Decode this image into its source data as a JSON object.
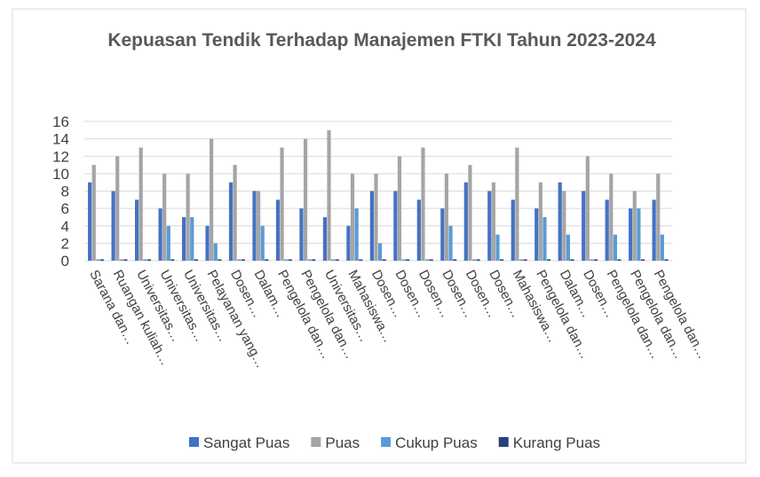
{
  "chart_data": {
    "type": "bar",
    "title": "Kepuasan Tendik Terhadap Manajemen FTKI Tahun 2023-2024",
    "categories": [
      "Sarana dan…",
      "Ruangan kuliah…",
      "Universitas…",
      "Universitas…",
      "Universitas…",
      "Pelayanan yang…",
      "Dosen…",
      "Dalam…",
      "Pengelola dan…",
      "Pengelola dan…",
      "Universitas…",
      "Mahasiswa…",
      "Dosen…",
      "Dosen…",
      "Dosen…",
      "Dosen…",
      "Dosen…",
      "Dosen…",
      "Mahasiswa…",
      "Pengelola dan…",
      "Dalam…",
      "Dosen…",
      "Pengelola dan…",
      "Pengelola dan…",
      "Pengelola dan…"
    ],
    "series": [
      {
        "name": "Sangat Puas",
        "color": "#4472c4",
        "values": [
          9,
          8,
          7,
          6,
          5,
          4,
          9,
          8,
          7,
          6,
          5,
          4,
          8,
          8,
          7,
          6,
          9,
          8,
          7,
          6,
          9,
          8,
          7,
          6,
          7
        ]
      },
      {
        "name": "Puas",
        "color": "#a5a5a5",
        "values": [
          11,
          12,
          13,
          10,
          10,
          14,
          11,
          8,
          13,
          14,
          15,
          10,
          10,
          12,
          13,
          10,
          11,
          9,
          13,
          9,
          8,
          12,
          10,
          8,
          10
        ]
      },
      {
        "name": "Cukup Puas",
        "color": "#5b9bd5",
        "values": [
          0,
          0,
          0,
          4,
          5,
          2,
          0,
          4,
          0,
          0,
          0,
          6,
          2,
          0,
          0,
          4,
          0,
          3,
          0,
          5,
          3,
          0,
          3,
          6,
          3
        ]
      },
      {
        "name": "Kurang Puas",
        "color": "#264478",
        "values": [
          0,
          0,
          0,
          0,
          0,
          0,
          0,
          0,
          0,
          0,
          0,
          0,
          0,
          0,
          0,
          0,
          0,
          0,
          0,
          0,
          0,
          0,
          0,
          0,
          0
        ]
      }
    ],
    "ylim": [
      0,
      16
    ],
    "yticks": [
      0,
      2,
      4,
      6,
      8,
      10,
      12,
      14,
      16
    ],
    "grid": true,
    "legend": "bottom"
  }
}
